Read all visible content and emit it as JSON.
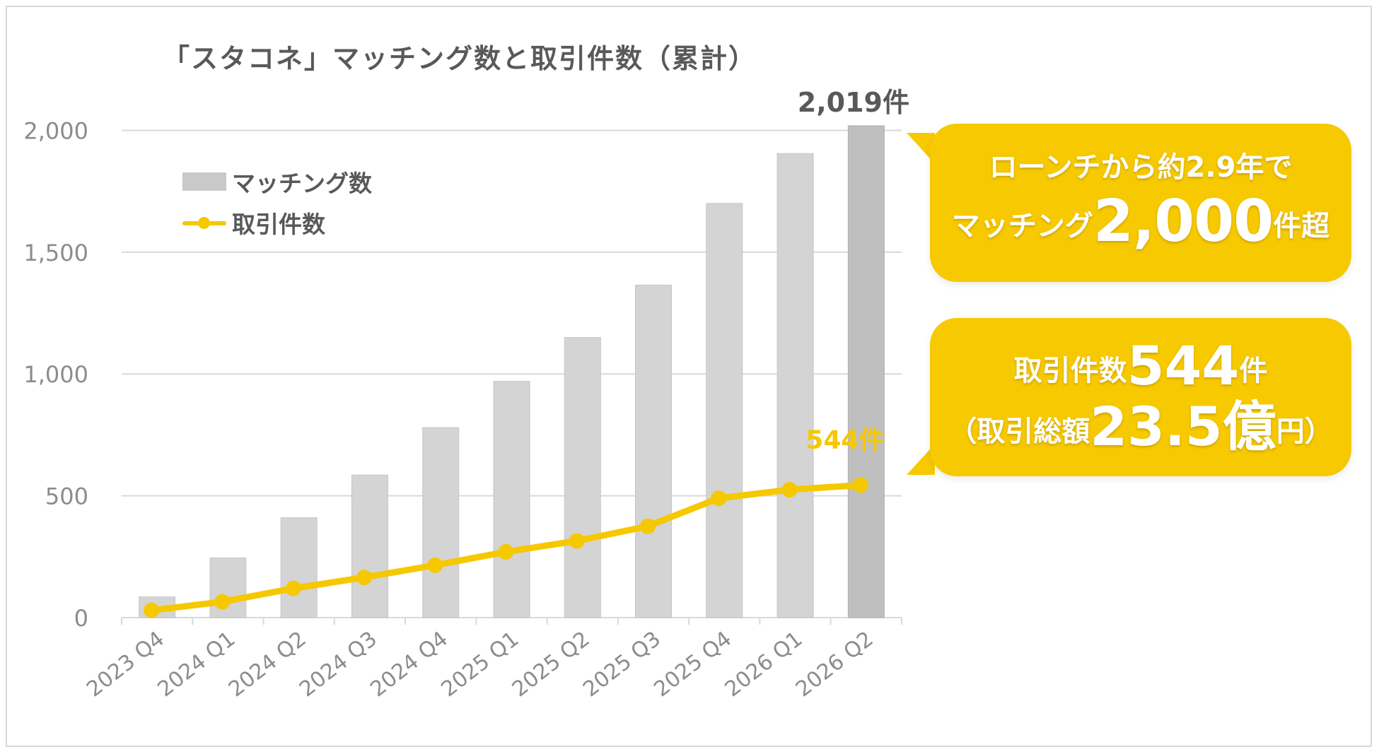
{
  "title": "「スタコネ」マッチング数と取引件数（累計）",
  "legend": {
    "bar_label": "マッチング数",
    "line_label": "取引件数"
  },
  "colors": {
    "bar": "#d4d4d4",
    "bar_highlight": "#bfbfbf",
    "line": "#f5c800",
    "grid": "#d9d9d9",
    "axis_text": "#8c8c8c",
    "callout_bg": "#f7c900"
  },
  "chart_data": {
    "type": "bar",
    "categories": [
      "2023 Q4",
      "2024 Q1",
      "2024 Q2",
      "2024 Q3",
      "2024 Q4",
      "2025 Q1",
      "2025 Q2",
      "2025 Q3",
      "2025 Q4",
      "2026 Q1",
      "2026 Q2"
    ],
    "series": [
      {
        "name": "マッチング数",
        "type": "bar",
        "values": [
          85,
          245,
          410,
          585,
          780,
          970,
          1150,
          1365,
          1700,
          1905,
          2019
        ]
      },
      {
        "name": "取引件数",
        "type": "line",
        "values": [
          30,
          65,
          120,
          165,
          215,
          270,
          315,
          375,
          490,
          525,
          544
        ]
      }
    ],
    "yticks": [
      "0",
      "500",
      "1,000",
      "1,500",
      "2,000"
    ],
    "ylim": [
      0,
      2100
    ],
    "grid": true,
    "legend_position": "top-left",
    "data_labels": {
      "last_bar": "2,019件",
      "last_line": "544件"
    }
  },
  "callouts": {
    "matching": {
      "line1": "ローンチから約2.9年で",
      "line2_prefix": "マッチング",
      "line2_big": "2,000",
      "line2_suffix": "件超"
    },
    "transactions": {
      "line1_prefix": "取引件数",
      "line1_big": "544",
      "line1_suffix": "件",
      "line2_open": "（取引総額",
      "line2_big": "23.5億",
      "line2_close": "円）"
    }
  }
}
